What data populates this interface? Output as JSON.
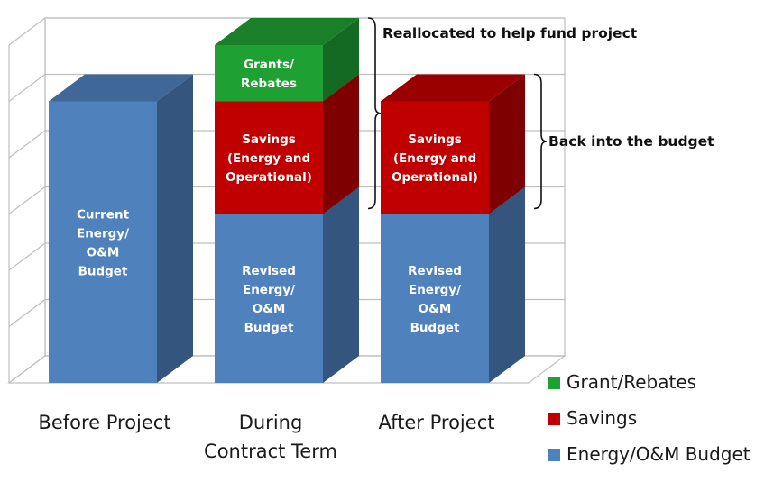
{
  "chart_data": {
    "type": "bar",
    "stacked": true,
    "three_d": true,
    "grid": true,
    "legend_position": "bottom-right",
    "categories": [
      [
        "Before Project"
      ],
      [
        "During",
        "Contract Term"
      ],
      [
        "After Project"
      ]
    ],
    "ylim": [
      0,
      6
    ],
    "series": [
      {
        "name": "Energy/O&M Budget",
        "color": "#4f81bd",
        "values": [
          5,
          3,
          3
        ],
        "segment_labels": [
          [
            "Current",
            "Energy/",
            "O&M",
            "Budget"
          ],
          [
            "Revised",
            "Energy/",
            "O&M",
            "Budget"
          ],
          [
            "Revised",
            "Energy/",
            "O&M",
            "Budget"
          ]
        ]
      },
      {
        "name": "Savings",
        "color": "#c00000",
        "values": [
          0,
          2,
          2
        ],
        "segment_labels": [
          [],
          [
            "Savings",
            "(Energy and",
            "Operational)"
          ],
          [
            "Savings",
            "(Energy and",
            "Operational)"
          ]
        ]
      },
      {
        "name": "Grant/Rebates",
        "color": "#1fa033",
        "values": [
          0,
          1,
          0
        ],
        "segment_labels": [
          [],
          [
            "Grants/",
            "Rebates"
          ],
          []
        ]
      }
    ],
    "legend": [
      "Grant/Rebates",
      "Savings",
      "Energy/O&M Budget"
    ],
    "annotations": [
      {
        "text": "Reallocated to help fund project",
        "category": 1,
        "span_series": [
          "Savings",
          "Grant/Rebates"
        ]
      },
      {
        "text": "Back into the budget",
        "category": 2,
        "span_series": [
          "Savings"
        ]
      }
    ]
  }
}
